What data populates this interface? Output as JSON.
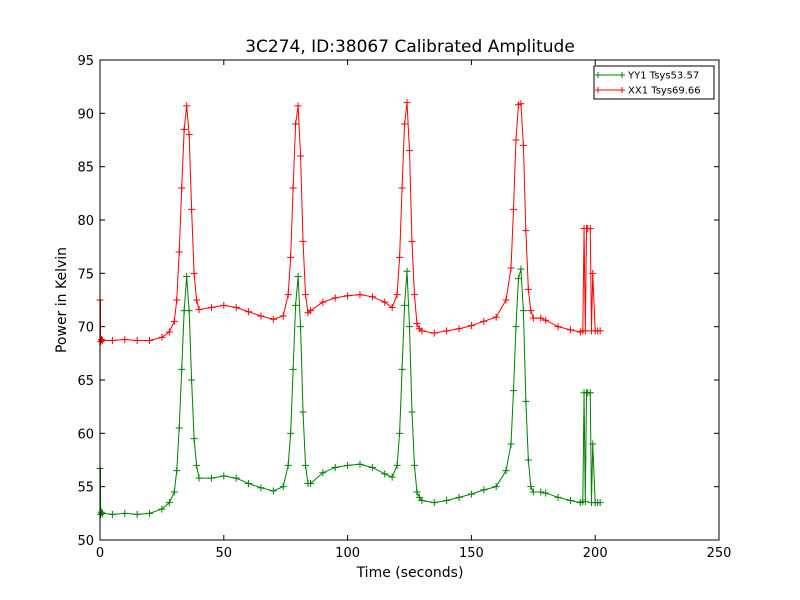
{
  "chart_data": {
    "type": "line",
    "title": "3C274, ID:38067 Calibrated Amplitude",
    "xlabel": "Time (seconds)",
    "ylabel": "Power in Kelvin",
    "xlim": [
      0,
      250
    ],
    "ylim": [
      50,
      95
    ],
    "xticks": [
      0,
      50,
      100,
      150,
      200,
      250
    ],
    "yticks": [
      50,
      55,
      60,
      65,
      70,
      75,
      80,
      85,
      90,
      95
    ],
    "grid": false,
    "legend_position": "top-right",
    "marker": "plus",
    "series": [
      {
        "name": "YY1 Tsys53.57",
        "color": "#008000",
        "x": [
          0,
          0.3,
          0.6,
          1,
          5,
          10,
          15,
          20,
          25,
          28,
          30,
          31,
          32,
          33,
          34,
          35,
          36,
          37,
          38,
          39,
          40,
          45,
          50,
          55,
          60,
          65,
          70,
          74,
          76,
          77,
          78,
          79,
          80,
          81,
          82,
          83,
          84,
          85,
          90,
          95,
          100,
          105,
          110,
          115,
          118,
          120,
          121,
          122,
          123,
          124,
          125,
          126,
          127,
          128,
          129,
          130,
          135,
          140,
          145,
          150,
          155,
          160,
          164,
          166,
          167,
          168,
          169,
          170,
          171,
          172,
          173,
          174,
          175,
          178,
          180,
          185,
          190,
          194,
          195,
          195.5,
          196,
          196.5,
          197,
          198,
          198.5,
          199,
          200,
          201,
          202
        ],
        "y": [
          56.7,
          52.4,
          52.6,
          52.5,
          52.4,
          52.5,
          52.4,
          52.5,
          52.9,
          53.5,
          54.5,
          56.5,
          60.5,
          66.0,
          71.5,
          74.7,
          71.5,
          65.0,
          59.5,
          57.0,
          55.8,
          55.8,
          56.0,
          55.8,
          55.3,
          54.9,
          54.6,
          55.0,
          57.0,
          60.0,
          66.0,
          72.0,
          74.7,
          70.0,
          62.0,
          57.0,
          55.3,
          55.3,
          56.3,
          56.8,
          57.0,
          57.1,
          56.8,
          56.2,
          55.9,
          57.0,
          60.0,
          66.0,
          72.0,
          75.2,
          70.0,
          62.0,
          57.0,
          54.5,
          54.0,
          53.7,
          53.5,
          53.7,
          54.0,
          54.3,
          54.7,
          55.0,
          56.5,
          59.0,
          64.0,
          70.0,
          74.5,
          75.4,
          71.5,
          63.0,
          57.5,
          55.0,
          54.5,
          54.5,
          54.4,
          54.0,
          53.7,
          53.5,
          53.6,
          63.8,
          53.6,
          63.8,
          63.8,
          63.8,
          53.5,
          59.0,
          53.5,
          53.5,
          53.5
        ],
        "start_spike": [
          52.5,
          56.7
        ]
      },
      {
        "name": "XX1 Tsys69.66",
        "color": "#ff0000",
        "x": [
          0,
          0.3,
          0.6,
          1,
          5,
          10,
          15,
          20,
          25,
          28,
          30,
          31,
          32,
          33,
          34,
          35,
          36,
          37,
          38,
          39,
          40,
          45,
          50,
          55,
          60,
          65,
          70,
          74,
          76,
          77,
          78,
          79,
          80,
          81,
          82,
          83,
          84,
          85,
          90,
          95,
          100,
          105,
          110,
          115,
          118,
          120,
          121,
          122,
          123,
          124,
          125,
          126,
          127,
          128,
          129,
          130,
          135,
          140,
          145,
          150,
          155,
          160,
          164,
          166,
          167,
          168,
          169,
          170,
          171,
          172,
          173,
          174,
          175,
          178,
          180,
          185,
          190,
          194,
          195,
          195.5,
          196,
          196.5,
          197,
          198,
          198.5,
          199,
          200,
          201,
          202
        ],
        "y": [
          72.5,
          68.6,
          68.8,
          68.7,
          68.7,
          68.8,
          68.7,
          68.7,
          69.0,
          69.5,
          70.5,
          72.5,
          77.0,
          83.0,
          88.5,
          90.7,
          88.0,
          81.0,
          75.0,
          72.5,
          71.6,
          71.8,
          72.0,
          71.8,
          71.4,
          71.0,
          70.7,
          71.0,
          73.0,
          76.5,
          83.0,
          89.0,
          90.7,
          86.0,
          78.0,
          73.0,
          71.3,
          71.5,
          72.3,
          72.7,
          72.9,
          73.0,
          72.8,
          72.3,
          71.8,
          73.0,
          76.5,
          83.0,
          89.0,
          91.0,
          86.5,
          78.0,
          73.0,
          70.3,
          69.8,
          69.6,
          69.4,
          69.6,
          69.8,
          70.1,
          70.5,
          70.9,
          72.5,
          75.5,
          81.0,
          87.5,
          90.8,
          90.9,
          87.0,
          79.0,
          73.5,
          71.5,
          70.8,
          70.8,
          70.6,
          70.0,
          69.7,
          69.5,
          69.6,
          79.2,
          69.6,
          79.2,
          79.2,
          79.2,
          69.6,
          75.0,
          69.6,
          69.6,
          69.6
        ],
        "start_spike": [
          68.7,
          72.5
        ]
      }
    ]
  }
}
